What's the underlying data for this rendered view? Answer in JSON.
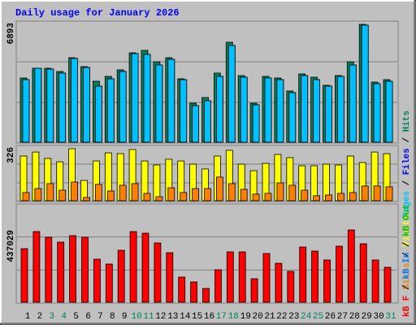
{
  "title": "Daily usage for January 2026",
  "separator": "/",
  "chart_data": [
    {
      "type": "bar",
      "ylim": [
        0,
        6893
      ],
      "yticks": [
        6893
      ],
      "series": [
        {
          "name": "Pages",
          "color": "#00c0ff",
          "values": [
            3660,
            4326,
            4278,
            4041,
            4897,
            4374,
            3280,
            3708,
            4136,
            5182,
            5134,
            4516,
            4849,
            3660,
            2139,
            2424,
            3851,
            5657,
            3803,
            2187,
            3756,
            3660,
            2900,
            3898,
            3660,
            3280,
            3851,
            4516,
            6846,
            3423,
            3565
          ]
        },
        {
          "name": "Files",
          "color": "#0000ff",
          "values": [
            3660,
            4326,
            4278,
            4041,
            4897,
            4374,
            3280,
            3708,
            4136,
            5182,
            5134,
            4516,
            4849,
            3660,
            2139,
            2424,
            3851,
            5657,
            3803,
            2187,
            3756,
            3660,
            2900,
            3898,
            3660,
            3280,
            3851,
            4516,
            6846,
            3423,
            3565
          ]
        },
        {
          "name": "Hits",
          "color": "#00805c",
          "values": [
            3756,
            4326,
            4326,
            4136,
            4944,
            4421,
            3565,
            3851,
            4231,
            5229,
            5372,
            4706,
            4944,
            3708,
            2282,
            2615,
            4041,
            5847,
            3898,
            2282,
            3851,
            3756,
            2995,
            3993,
            3803,
            3328,
            3898,
            4706,
            6893,
            3518,
            3660
          ]
        }
      ]
    },
    {
      "type": "bar",
      "ylim": [
        0,
        326
      ],
      "yticks": [
        326
      ],
      "series": [
        {
          "name": "Sites",
          "color": "#ff8000",
          "values": [
            51,
            76,
            107,
            66,
            117,
            20,
            102,
            61,
            97,
            107,
            46,
            25,
            81,
            51,
            76,
            76,
            148,
            107,
            71,
            41,
            46,
            112,
            97,
            66,
            31,
            36,
            46,
            51,
            92,
            92,
            87
          ]
        },
        {
          "name": "Visits",
          "color": "#ffff00",
          "values": [
            280,
            305,
            265,
            244,
            326,
            127,
            249,
            300,
            295,
            321,
            249,
            224,
            260,
            249,
            229,
            199,
            280,
            316,
            229,
            188,
            234,
            290,
            270,
            219,
            219,
            229,
            224,
            280,
            239,
            305,
            295
          ]
        }
      ]
    },
    {
      "type": "bar",
      "ylim": [
        0,
        437029
      ],
      "yticks": [
        437029
      ],
      "categories": [
        "1",
        "2",
        "3",
        "4",
        "5",
        "6",
        "7",
        "8",
        "9",
        "10",
        "11",
        "12",
        "13",
        "14",
        "15",
        "16",
        "17",
        "18",
        "19",
        "20",
        "21",
        "22",
        "23",
        "24",
        "25",
        "26",
        "27",
        "28",
        "29",
        "30",
        "31"
      ],
      "category_colors": [
        "#000000",
        "#000000",
        "#00805c",
        "#00805c",
        "#000000",
        "#000000",
        "#000000",
        "#000000",
        "#000000",
        "#00805c",
        "#00805c",
        "#000000",
        "#000000",
        "#000000",
        "#000000",
        "#000000",
        "#00805c",
        "#00805c",
        "#000000",
        "#000000",
        "#000000",
        "#000000",
        "#000000",
        "#00805c",
        "#00805c",
        "#000000",
        "#000000",
        "#000000",
        "#000000",
        "#000000",
        "#00805c"
      ],
      "series": [
        {
          "name": "kB F",
          "color": "#ff0000",
          "values": [
            324060,
            427170,
            392800,
            363340,
            402620,
            392800,
            260230,
            230770,
            314240,
            427170,
            417350,
            358430,
            299510,
            152210,
            122750,
            83470,
            196400,
            304420,
            304420,
            142390,
            294600,
            235680,
            186580,
            333880,
            309330,
            255320,
            338790,
            437029,
            353520,
            255320,
            211130
          ]
        }
      ],
      "extra_legend": [
        {
          "name": "kB In",
          "color": "#0080ff"
        },
        {
          "name": "kB Out",
          "color": "#00c000"
        }
      ]
    }
  ]
}
